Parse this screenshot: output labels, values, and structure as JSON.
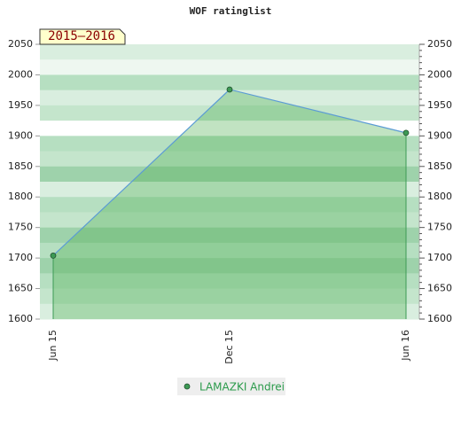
{
  "chart_data": {
    "type": "line",
    "title": "WOF ratinglist",
    "annotation": "2015–2016",
    "categories": [
      "Jun 15",
      "Dec 15",
      "Jun 16"
    ],
    "series": [
      {
        "name": "LAMAZKI Andrei",
        "color": "#5b9bd5",
        "fill": "#4caf50",
        "marker": "#3d9a55",
        "values": [
          1704,
          1976,
          1905
        ]
      }
    ],
    "ylim": [
      1600,
      2050
    ],
    "yticks": [
      1600,
      1650,
      1700,
      1750,
      1800,
      1850,
      1900,
      1950,
      2000,
      2050
    ],
    "y2lim": [
      1600,
      2050
    ],
    "y2ticks": [
      1600,
      1650,
      1700,
      1750,
      1800,
      1850,
      1900,
      1950,
      2000,
      2050
    ]
  }
}
